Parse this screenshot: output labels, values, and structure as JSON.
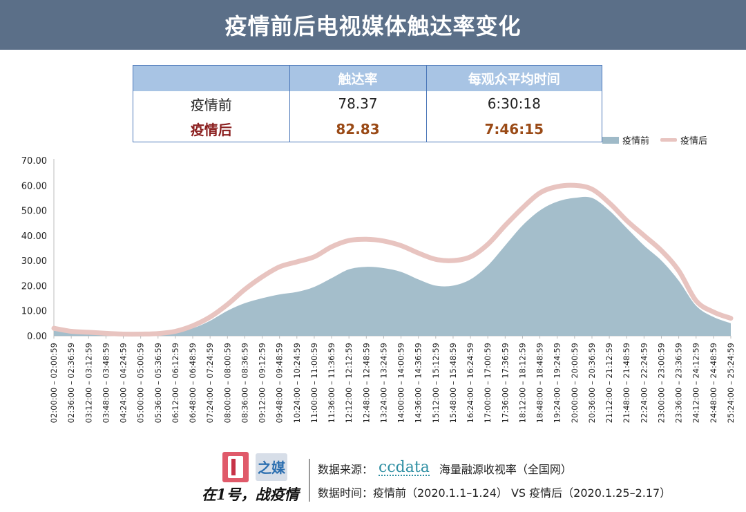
{
  "header": {
    "title": "疫情前后电视媒体触达率变化"
  },
  "summary_table": {
    "columns": [
      "",
      "触达率",
      "每观众平均时间"
    ],
    "rows": [
      {
        "label": "疫情前",
        "reach": "78.37",
        "avg_time": "6:30:18"
      },
      {
        "label": "疫情后",
        "reach": "82.83",
        "avg_time": "7:46:15"
      }
    ]
  },
  "legend": {
    "before": "疫情前",
    "after": "疫情后"
  },
  "colors": {
    "header_bg": "#5b6f88",
    "before_fill": "#9fbac8",
    "after_line": "#e8c4c0",
    "table_header_bg": "#a8c4e4",
    "table_border": "#4a76b8",
    "after_value": "#9a4a16"
  },
  "chart_data": {
    "type": "area",
    "ylim": [
      0,
      70
    ],
    "yticks": [
      "0.00",
      "10.00",
      "20.00",
      "30.00",
      "40.00",
      "50.00",
      "60.00",
      "70.00"
    ],
    "x_tick_labels": [
      "02:00:00 – 02:00:59",
      "02:36:00 – 02:36:59",
      "03:12:00 – 03:12:59",
      "03:48:00 – 03:48:59",
      "04:24:00 – 04:24:59",
      "05:00:00 – 05:00:59",
      "05:36:00 – 05:36:59",
      "06:12:00 – 06:12:59",
      "06:48:00 – 06:48:59",
      "07:24:00 – 07:24:59",
      "08:00:00 – 08:00:59",
      "08:36:00 – 08:36:59",
      "09:12:00 – 09:12:59",
      "09:48:00 – 09:48:59",
      "10:24:00 – 10:24:59",
      "11:00:00 – 11:00:59",
      "11:36:00 – 11:36:59",
      "12:12:00 – 12:12:59",
      "12:48:00 – 12:48:59",
      "13:24:00 – 13:24:59",
      "14:00:00 – 14:00:59",
      "14:36:00 – 14:36:59",
      "15:12:00 – 15:12:59",
      "15:48:00 – 15:48:59",
      "16:24:00 – 16:24:59",
      "17:00:00 – 17:00:59",
      "17:36:00 – 17:36:59",
      "18:12:00 – 18:12:59",
      "18:48:00 – 18:48:59",
      "19:24:00 – 19:24:59",
      "20:00:00 – 20:00:59",
      "20:36:00 – 20:36:59",
      "21:12:00 – 21:12:59",
      "21:48:00 – 21:48:59",
      "22:24:00 – 22:24:59",
      "23:00:00 – 23:00:59",
      "23:36:00 – 23:36:59",
      "24:12:00 – 24:12:59",
      "24:48:00 – 24:48:59",
      "25:24:00 – 25:24:59"
    ],
    "series": [
      {
        "name": "疫情前",
        "style": "area",
        "values": [
          2.0,
          1.3,
          0.9,
          0.6,
          0.4,
          0.4,
          0.6,
          1.2,
          3.0,
          6.0,
          10.0,
          13.0,
          15.0,
          16.5,
          17.5,
          19.5,
          23.0,
          26.5,
          27.5,
          27.0,
          25.5,
          22.5,
          20.0,
          20.0,
          22.5,
          28.0,
          36.0,
          44.0,
          50.0,
          53.5,
          55.0,
          55.0,
          50.0,
          43.0,
          36.0,
          30.0,
          22.0,
          12.0,
          7.5,
          5.0
        ]
      },
      {
        "name": "疫情后",
        "style": "line",
        "values": [
          3.0,
          1.8,
          1.4,
          1.0,
          0.7,
          0.7,
          0.9,
          1.8,
          4.0,
          7.5,
          12.5,
          18.5,
          23.5,
          27.5,
          29.5,
          31.5,
          35.5,
          38.0,
          38.5,
          37.8,
          36.0,
          33.0,
          30.5,
          30.0,
          31.5,
          36.5,
          44.0,
          51.0,
          57.0,
          59.5,
          60.0,
          58.5,
          53.0,
          46.0,
          40.0,
          34.0,
          26.0,
          14.0,
          9.5,
          7.0
        ]
      }
    ]
  },
  "footer": {
    "logo_text": "之媒",
    "slogan": "在1号，战疫情",
    "source_label": "数据来源：",
    "source_brand": "ccdata",
    "source_desc": "海量融源收视率（全国网）",
    "time_label": "数据时间：疫情前（2020.1.1–1.24） VS 疫情后（2020.1.25–2.17）"
  }
}
